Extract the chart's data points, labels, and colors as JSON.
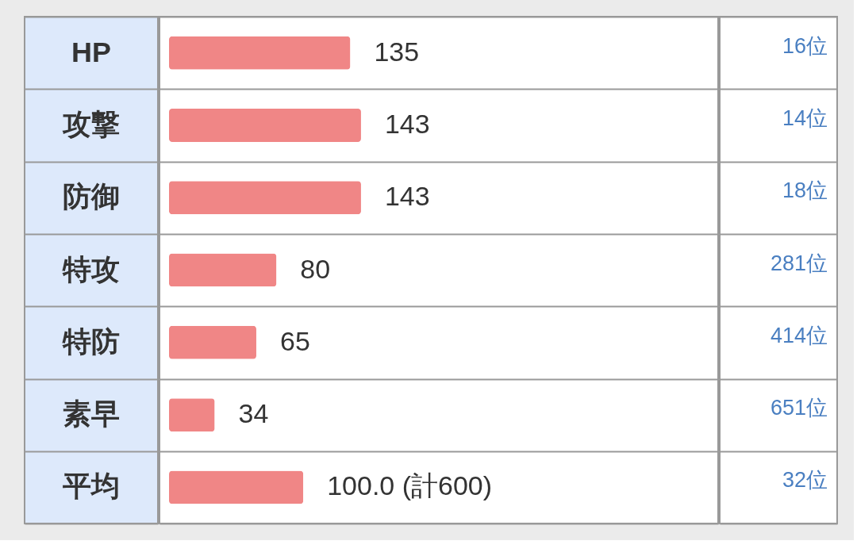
{
  "chart_data": {
    "type": "bar",
    "orientation": "horizontal",
    "categories": [
      "HP",
      "攻撃",
      "防御",
      "特攻",
      "特防",
      "素早",
      "平均"
    ],
    "values": [
      135,
      143,
      143,
      80,
      65,
      34,
      100.0
    ],
    "value_labels": [
      "135",
      "143",
      "143",
      "80",
      "65",
      "34",
      "100.0 (計600)"
    ],
    "color": "#f08686",
    "annotations": [
      "16位",
      "14位",
      "18位",
      "281位",
      "414位",
      "651位",
      "32位"
    ]
  }
}
